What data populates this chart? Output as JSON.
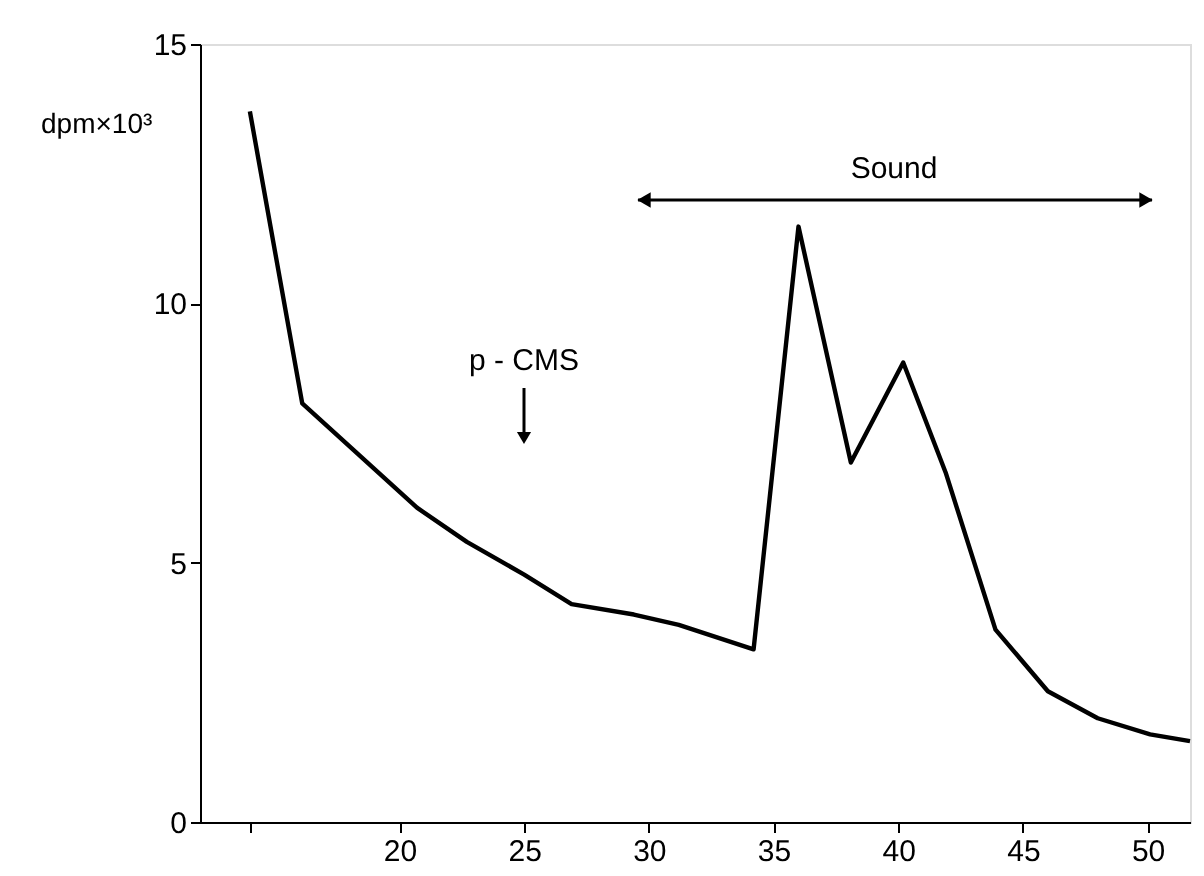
{
  "chart_data": {
    "type": "line",
    "ylabel": "dpm×10³",
    "x": [
      14.0,
      16.1,
      20.7,
      22.7,
      25.0,
      26.9,
      29.4,
      31.2,
      34.2,
      36.0,
      38.1,
      40.2,
      41.9,
      43.9,
      46.0,
      48.0,
      50.1,
      51.7
    ],
    "series": [
      {
        "color": "#000000",
        "values": [
          13.7,
          8.07,
          6.06,
          5.4,
          4.77,
          4.2,
          4.0,
          3.8,
          3.33,
          11.48,
          6.93,
          8.86,
          6.74,
          3.71,
          2.52,
          2.0,
          1.69,
          1.56
        ]
      }
    ],
    "xlim": [
      12,
      51.7
    ],
    "xticks": [
      {
        "value": 14,
        "label": null
      },
      20,
      25,
      30,
      35,
      40,
      45,
      50
    ],
    "ylim": [
      0,
      15
    ],
    "yticks": [
      0,
      5,
      10,
      15
    ],
    "annotations": [
      "p - CMS",
      "Sound"
    ],
    "grid": false,
    "marker": "none",
    "line_style": "solid"
  }
}
